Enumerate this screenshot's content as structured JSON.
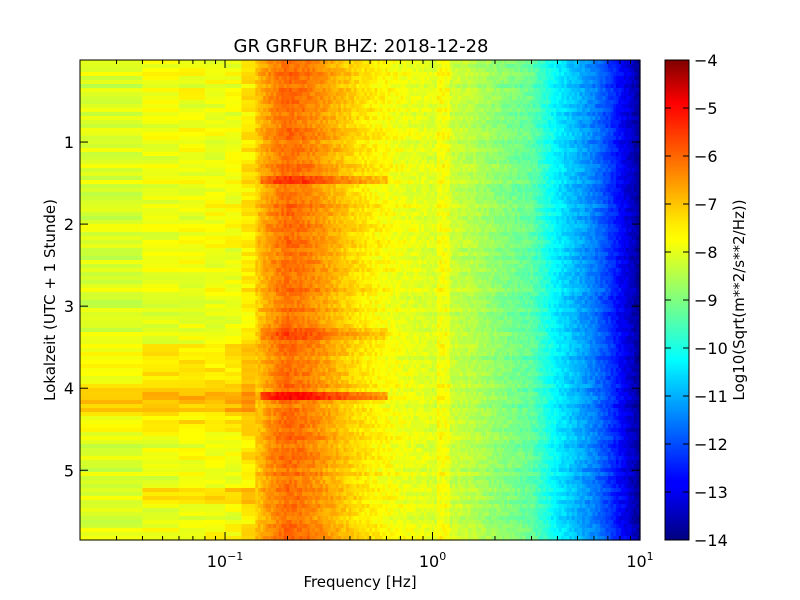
{
  "chart_data": {
    "type": "heatmap",
    "title": "GR GRFUR BHZ: 2018-12-28",
    "xlabel": "Frequency [Hz]",
    "ylabel": "Lokalzeit (UTC + 1 Stunde)",
    "x_scale": "log",
    "xlim": [
      0.02,
      10
    ],
    "ylim": [
      0,
      5.85
    ],
    "y_inverted": true,
    "x_ticks": [
      {
        "value": 0.1,
        "base": "10",
        "exp": "-1"
      },
      {
        "value": 1,
        "base": "10",
        "exp": "0"
      },
      {
        "value": 10,
        "base": "10",
        "exp": "1"
      }
    ],
    "y_ticks": [
      {
        "value": 1,
        "label": "1"
      },
      {
        "value": 2,
        "label": "2"
      },
      {
        "value": 3,
        "label": "3"
      },
      {
        "value": 4,
        "label": "4"
      },
      {
        "value": 5,
        "label": "5"
      }
    ],
    "colorbar": {
      "label": "Log10(Sqrt(m**2/s**2/Hz))",
      "range": [
        -14,
        -4
      ],
      "colormap": "jet",
      "ticks": [
        {
          "value": -4,
          "label": "−4"
        },
        {
          "value": -5,
          "label": "−5"
        },
        {
          "value": -6,
          "label": "−6"
        },
        {
          "value": -7,
          "label": "−7"
        },
        {
          "value": -8,
          "label": "−8"
        },
        {
          "value": -9,
          "label": "−9"
        },
        {
          "value": -10,
          "label": "−10"
        },
        {
          "value": -11,
          "label": "−11"
        },
        {
          "value": -12,
          "label": "−12"
        },
        {
          "value": -13,
          "label": "−13"
        },
        {
          "value": -14,
          "label": "−14"
        }
      ]
    },
    "spectrum_profile": {
      "frequency_hz": [
        0.02,
        0.03,
        0.04,
        0.06,
        0.08,
        0.1,
        0.12,
        0.14,
        0.16,
        0.18,
        0.2,
        0.25,
        0.3,
        0.4,
        0.5,
        0.7,
        1.0,
        1.5,
        2.0,
        3.0,
        3.5,
        4.0,
        5.0,
        6.0,
        7.0,
        8.0,
        9.0,
        10.0
      ],
      "log10_amplitude": [
        -8.2,
        -8.1,
        -8.0,
        -7.9,
        -7.9,
        -7.9,
        -7.8,
        -7.3,
        -6.8,
        -6.5,
        -6.3,
        -6.5,
        -6.8,
        -7.3,
        -7.6,
        -7.9,
        -8.1,
        -8.4,
        -8.8,
        -9.3,
        -9.9,
        -10.4,
        -11.0,
        -11.5,
        -12.1,
        -12.7,
        -13.2,
        -13.8
      ]
    },
    "time_events": [
      {
        "hour": 1.45,
        "log10_amplitude_shift": 0.6
      },
      {
        "hour": 3.35,
        "log10_amplitude_shift": 0.4
      },
      {
        "hour": 4.1,
        "log10_amplitude_shift": 1.0
      }
    ]
  }
}
